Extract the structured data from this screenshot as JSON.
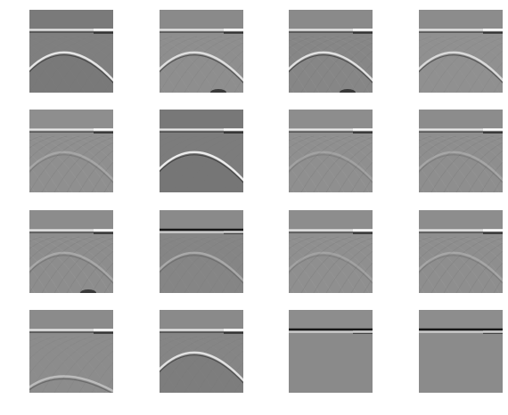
{
  "figure": {
    "rows": 4,
    "cols": 4,
    "panels": [
      {
        "id": 1,
        "variant": "smooth-arc",
        "base_gray": "#7f7f7f",
        "top_gray": "#7a7a7a",
        "arc_strength": 0.95,
        "hatch": 0.15,
        "notch": false
      },
      {
        "id": 2,
        "variant": "arc-hatch",
        "base_gray": "#8e8e8e",
        "top_gray": "#8a8a8a",
        "arc_strength": 0.85,
        "hatch": 0.55,
        "notch": true
      },
      {
        "id": 3,
        "variant": "arc-hatch",
        "base_gray": "#868686",
        "top_gray": "#8a8a8a",
        "arc_strength": 0.9,
        "hatch": 0.6,
        "notch": true
      },
      {
        "id": 4,
        "variant": "arc-hatch",
        "base_gray": "#909090",
        "top_gray": "#8c8c8c",
        "arc_strength": 0.8,
        "hatch": 0.45,
        "notch": false
      },
      {
        "id": 5,
        "variant": "hatch",
        "base_gray": "#8f8f8f",
        "top_gray": "#8e8e8e",
        "arc_strength": 0.25,
        "hatch": 0.75,
        "notch": false
      },
      {
        "id": 6,
        "variant": "smooth-arc",
        "base_gray": "#7c7c7c",
        "top_gray": "#787878",
        "arc_strength": 1.0,
        "hatch": 0.1,
        "notch": false
      },
      {
        "id": 7,
        "variant": "hatch",
        "base_gray": "#8f8f8f",
        "top_gray": "#8d8d8d",
        "arc_strength": 0.2,
        "hatch": 0.7,
        "notch": false
      },
      {
        "id": 8,
        "variant": "hatch",
        "base_gray": "#8e8e8e",
        "top_gray": "#8c8c8c",
        "arc_strength": 0.25,
        "hatch": 0.75,
        "notch": false
      },
      {
        "id": 9,
        "variant": "hatch",
        "base_gray": "#8d8d8d",
        "top_gray": "#8c8c8c",
        "arc_strength": 0.3,
        "hatch": 0.8,
        "notch": true
      },
      {
        "id": 10,
        "variant": "flat-dark",
        "base_gray": "#858585",
        "top_gray": "#8a8a8a",
        "arc_strength": 0.35,
        "hatch": 0.35,
        "notch": false
      },
      {
        "id": 11,
        "variant": "hatch",
        "base_gray": "#8f8f8f",
        "top_gray": "#8d8d8d",
        "arc_strength": 0.2,
        "hatch": 0.75,
        "notch": false
      },
      {
        "id": 12,
        "variant": "hatch",
        "base_gray": "#8e8e8e",
        "top_gray": "#8d8d8d",
        "arc_strength": 0.25,
        "hatch": 0.8,
        "notch": false
      },
      {
        "id": 13,
        "variant": "arc-low",
        "base_gray": "#8c8c8c",
        "top_gray": "#8b8b8b",
        "arc_strength": 0.5,
        "hatch": 0.35,
        "notch": false
      },
      {
        "id": 14,
        "variant": "smooth-arc",
        "base_gray": "#858585",
        "top_gray": "#8a8a8a",
        "arc_strength": 0.9,
        "hatch": 0.3,
        "notch": false
      },
      {
        "id": 15,
        "variant": "flat-line",
        "base_gray": "#8a8a8a",
        "top_gray": "#8d8d8d",
        "arc_strength": 0.0,
        "hatch": 0.05,
        "notch": false
      },
      {
        "id": 16,
        "variant": "flat-line",
        "base_gray": "#8b8b8b",
        "top_gray": "#8d8d8d",
        "arc_strength": 0.0,
        "hatch": 0.05,
        "notch": false
      }
    ]
  }
}
